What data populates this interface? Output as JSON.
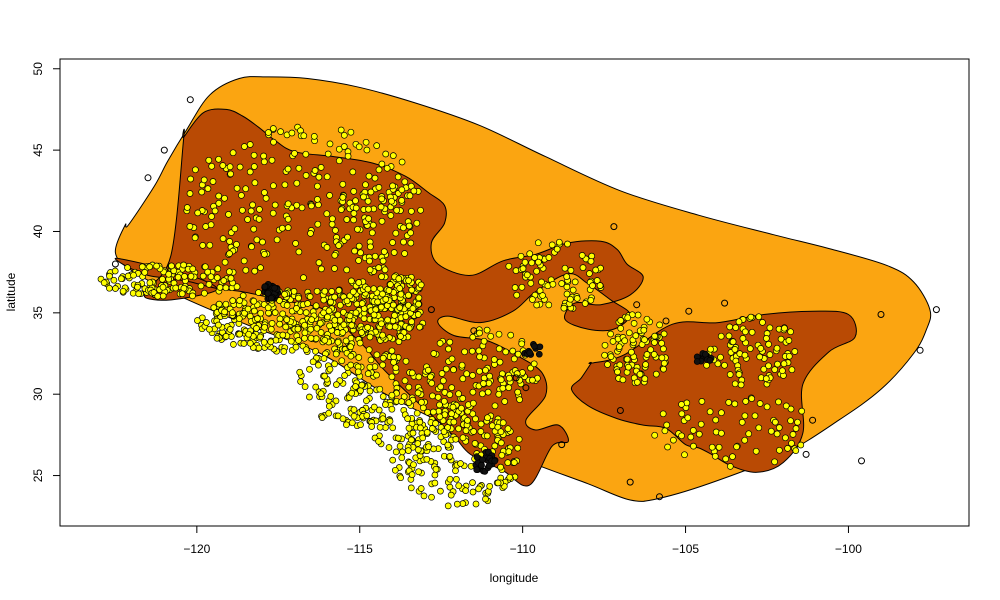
{
  "chart_data": {
    "type": "scatter",
    "title": "",
    "xlabel": "longitude",
    "ylabel": "latitude",
    "xlim": [
      -124.2,
      -96.3
    ],
    "ylim": [
      21.9,
      50.6
    ],
    "x_ticks": [
      -120,
      -115,
      -110,
      -105,
      -100
    ],
    "y_ticks": [
      25,
      30,
      35,
      40,
      45,
      50
    ],
    "grid": false,
    "legend": "none",
    "colors": {
      "outer_region": "#FBA511",
      "inner_region": "#B94A04",
      "point_fill": "#FFFF00",
      "point_outline": "#000000"
    },
    "regions": [
      {
        "name": "outer hull",
        "fill": "#FBA511",
        "lon": [
          -122.1,
          -121.3,
          -120.9,
          -120.3,
          -119.6,
          -118.7,
          -117.8,
          -116.6,
          -115.1,
          -113.3,
          -111.3,
          -109.3,
          -107.0,
          -104.6,
          -102.3,
          -100.5,
          -98.8,
          -98.0,
          -97.5,
          -97.6,
          -98.0,
          -99.0,
          -100.3,
          -102.0,
          -104.0,
          -105.8,
          -106.7,
          -108.0,
          -110.0,
          -112.0,
          -114.2,
          -116.2,
          -118.5,
          -120.6,
          -122.0,
          -122.5,
          -122.2
        ],
        "lat": [
          40.4,
          42.8,
          44.3,
          46.3,
          48.4,
          49.4,
          49.5,
          49.4,
          48.9,
          47.9,
          46.5,
          44.6,
          42.5,
          41.0,
          39.8,
          38.9,
          37.9,
          36.9,
          35.2,
          34.0,
          32.5,
          30.3,
          28.4,
          26.3,
          24.7,
          23.6,
          23.5,
          24.5,
          26.0,
          27.8,
          30.0,
          32.5,
          34.3,
          36.1,
          37.6,
          38.7,
          40.4
        ]
      },
      {
        "name": "inner region west",
        "fill": "#B94A04",
        "lon": [
          -120.4,
          -119.8,
          -119.1,
          -118.6,
          -118.1,
          -117.6,
          -117.0,
          -115.8,
          -114.6,
          -113.6,
          -112.9,
          -112.4,
          -112.4,
          -112.8,
          -112.6,
          -111.6,
          -110.6,
          -109.6,
          -108.6,
          -107.6,
          -107.1,
          -106.8,
          -106.3,
          -106.7,
          -107.6,
          -108.4,
          -108.7,
          -108.0,
          -107.2,
          -106.7,
          -107.3,
          -108.0,
          -108.6,
          -109.6,
          -110.3,
          -111.3,
          -112.3,
          -112.6,
          -112.1,
          -111.1,
          -110.1,
          -109.4,
          -109.3,
          -109.9,
          -109.6,
          -108.9,
          -108.6,
          -109.1,
          -109.8,
          -110.6,
          -111.6,
          -112.1,
          -112.9,
          -113.6,
          -114.3,
          -114.8,
          -115.3,
          -115.8,
          -116.2,
          -116.6,
          -117.2,
          -117.9,
          -118.6,
          -119.4,
          -120.2,
          -120.8,
          -121.5,
          -122.1,
          -122.5,
          -122.3,
          -121.6,
          -120.6,
          -119.8,
          -119.4,
          -120.4,
          -121.3,
          -121.6,
          -120.8,
          -120.4
        ],
        "lat": [
          45.8,
          47.3,
          47.5,
          47.1,
          46.4,
          45.6,
          44.9,
          44.6,
          44.2,
          43.4,
          42.4,
          41.6,
          40.5,
          39.3,
          38.0,
          37.3,
          38.2,
          38.6,
          39.3,
          39.4,
          38.9,
          38.0,
          37.2,
          36.1,
          35.5,
          35.6,
          34.6,
          34.0,
          34.0,
          34.9,
          35.8,
          36.8,
          37.4,
          36.3,
          35.1,
          34.4,
          34.8,
          34.4,
          33.6,
          33.3,
          32.3,
          31.3,
          29.9,
          28.4,
          27.8,
          28.1,
          27.1,
          26.8,
          24.4,
          25.3,
          26.3,
          27.4,
          28.9,
          30.2,
          31.6,
          32.8,
          33.8,
          34.8,
          35.3,
          35.5,
          35.7,
          36.0,
          36.3,
          36.5,
          36.9,
          37.1,
          37.3,
          37.8,
          38.3,
          38.3,
          38.0,
          37.5,
          37.0,
          36.4,
          35.9,
          35.8,
          36.3,
          38.5,
          45.8
        ]
      },
      {
        "name": "inner region east",
        "fill": "#B94A04",
        "lon": [
          -107.9,
          -106.9,
          -105.4,
          -104.0,
          -102.6,
          -101.1,
          -100.0,
          -99.8,
          -100.6,
          -101.4,
          -101.4,
          -102.0,
          -102.8,
          -103.6,
          -104.2,
          -104.6,
          -105.0,
          -105.6,
          -106.3,
          -107.1,
          -108.0,
          -108.5,
          -108.2,
          -107.9
        ],
        "lat": [
          31.9,
          32.4,
          34.3,
          34.4,
          34.9,
          35.1,
          34.9,
          33.5,
          32.6,
          30.6,
          27.6,
          25.8,
          25.2,
          25.6,
          26.3,
          26.7,
          26.9,
          27.9,
          28.1,
          28.5,
          29.3,
          30.3,
          31.0,
          31.9
        ]
      }
    ],
    "clusters": [
      {
        "lon": [
          -123,
          -118.5
        ],
        "lat": [
          36,
          38
        ],
        "n": 140,
        "fill": "#FFFF00"
      },
      {
        "lon": [
          -120,
          -113
        ],
        "lat": [
          32.5,
          36.5
        ],
        "n": 420,
        "fill": "#FFFF00"
      },
      {
        "lon": [
          -115.5,
          -113
        ],
        "lat": [
          34.5,
          37.8
        ],
        "n": 130,
        "fill": "#FFFF00"
      },
      {
        "lon": [
          -117,
          -113
        ],
        "lat": [
          28,
          33
        ],
        "n": 160,
        "fill": "#FFFF00"
      },
      {
        "lon": [
          -114,
          -110
        ],
        "lat": [
          23,
          29.5
        ],
        "n": 200,
        "fill": "#FFFF00"
      },
      {
        "lon": [
          -115,
          -111.5
        ],
        "lat": [
          26.5,
          30
        ],
        "n": 80,
        "fill": "#FFFF00"
      },
      {
        "lon": [
          -113,
          -109.5
        ],
        "lat": [
          29,
          34
        ],
        "n": 110,
        "fill": "#FFFF00"
      },
      {
        "lon": [
          -110.5,
          -107.5
        ],
        "lat": [
          35,
          39.5
        ],
        "n": 90,
        "fill": "#FFFF00"
      },
      {
        "lon": [
          -120.5,
          -113
        ],
        "lat": [
          37,
          46.5
        ],
        "n": 220,
        "fill": "#FFFF00"
      },
      {
        "lon": [
          -116,
          -113
        ],
        "lat": [
          38,
          43
        ],
        "n": 60,
        "fill": "#FFFF00"
      },
      {
        "lon": [
          -107.5,
          -105.5
        ],
        "lat": [
          30.5,
          35
        ],
        "n": 90,
        "fill": "#FFFF00"
      },
      {
        "lon": [
          -104.5,
          -101.5
        ],
        "lat": [
          30.5,
          34.8
        ],
        "n": 90,
        "fill": "#FFFF00"
      },
      {
        "lon": [
          -106,
          -101
        ],
        "lat": [
          25.5,
          30
        ],
        "n": 70,
        "fill": "#FFFF00"
      },
      {
        "lon": [
          -118,
          -117.5
        ],
        "lat": [
          35.8,
          36.8
        ],
        "n": 40,
        "fill": "#111111"
      },
      {
        "lon": [
          -111.5,
          -110.8
        ],
        "lat": [
          24.8,
          26.5
        ],
        "n": 25,
        "fill": "#111111"
      },
      {
        "lon": [
          -110,
          -109.4
        ],
        "lat": [
          32.3,
          33.2
        ],
        "n": 12,
        "fill": "#111111"
      },
      {
        "lon": [
          -104.7,
          -104.2
        ],
        "lat": [
          31.9,
          32.5
        ],
        "n": 12,
        "fill": "#111111"
      }
    ],
    "points": [
      {
        "lon": -120.2,
        "lat": 48.1
      },
      {
        "lon": -121.0,
        "lat": 45.0
      },
      {
        "lon": -121.5,
        "lat": 43.3
      },
      {
        "lon": -122.5,
        "lat": 38.0
      },
      {
        "lon": -107.2,
        "lat": 40.3
      },
      {
        "lon": -103.8,
        "lat": 35.6
      },
      {
        "lon": -106.5,
        "lat": 35.5
      },
      {
        "lon": -105.6,
        "lat": 34.5
      },
      {
        "lon": -108.8,
        "lat": 26.9
      },
      {
        "lon": -106.7,
        "lat": 24.6
      },
      {
        "lon": -105.8,
        "lat": 23.7
      },
      {
        "lon": -99.0,
        "lat": 34.9
      },
      {
        "lon": -97.3,
        "lat": 35.2
      },
      {
        "lon": -97.8,
        "lat": 32.7
      },
      {
        "lon": -99.6,
        "lat": 25.9
      },
      {
        "lon": -101.3,
        "lat": 26.3
      },
      {
        "lon": -101.1,
        "lat": 28.4
      },
      {
        "lon": -107.0,
        "lat": 29.0
      },
      {
        "lon": -104.9,
        "lat": 35.1
      },
      {
        "lon": -110.2,
        "lat": 31.0
      },
      {
        "lon": -109.9,
        "lat": 30.4
      },
      {
        "lon": -112.8,
        "lat": 35.2
      },
      {
        "lon": -111.5,
        "lat": 33.9
      }
    ]
  }
}
